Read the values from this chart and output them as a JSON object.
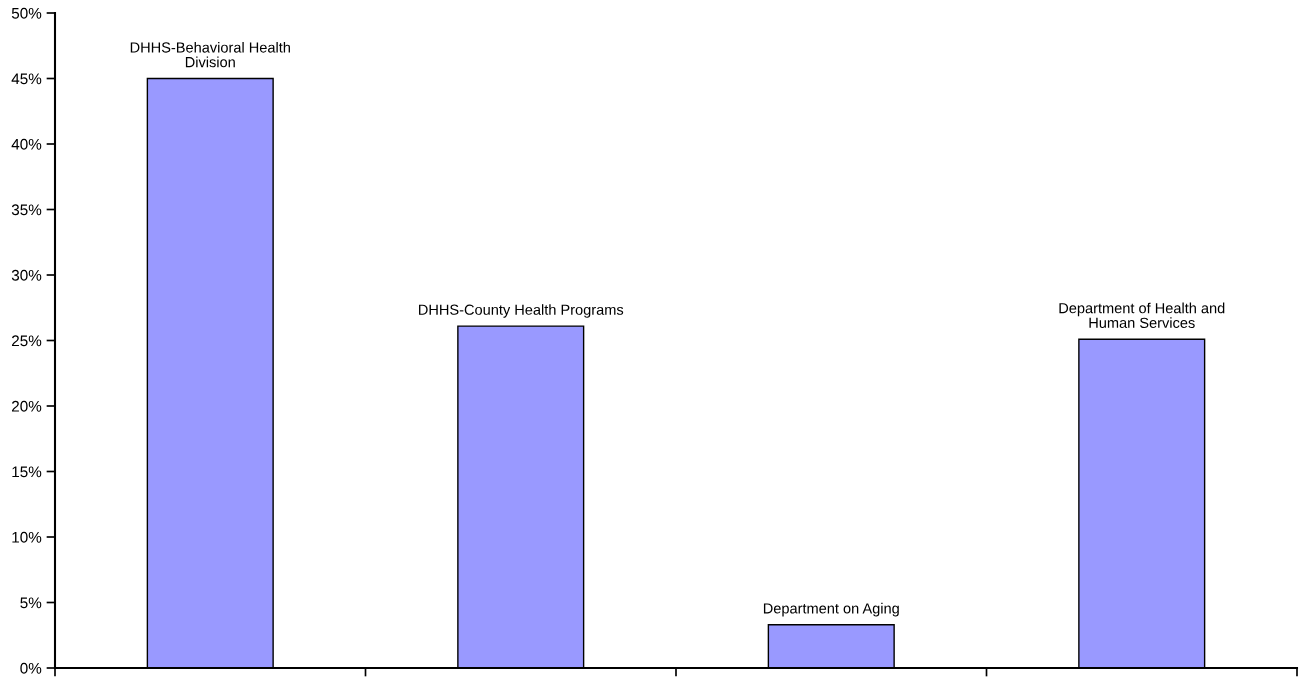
{
  "chart_data": {
    "type": "bar",
    "categories": [
      "DHHS-Behavioral Health\nDivision",
      "DHHS-County Health Programs",
      "Department on Aging",
      "Department of Health and\nHuman Services"
    ],
    "values": [
      45,
      26.1,
      3.3,
      25.1
    ],
    "color": "#9999ff",
    "ylim": [
      0,
      50
    ],
    "yticks": [
      {
        "value": 0,
        "label": "0%"
      },
      {
        "value": 5,
        "label": "5%"
      },
      {
        "value": 10,
        "label": "10%"
      },
      {
        "value": 15,
        "label": "15%"
      },
      {
        "value": 20,
        "label": "20%"
      },
      {
        "value": 25,
        "label": "25%"
      },
      {
        "value": 30,
        "label": "30%"
      },
      {
        "value": 35,
        "label": "35%"
      },
      {
        "value": 40,
        "label": "40%"
      },
      {
        "value": 45,
        "label": "45%"
      },
      {
        "value": 50,
        "label": "50%"
      }
    ],
    "tick_labels": "y",
    "grid": false,
    "legend": false
  }
}
